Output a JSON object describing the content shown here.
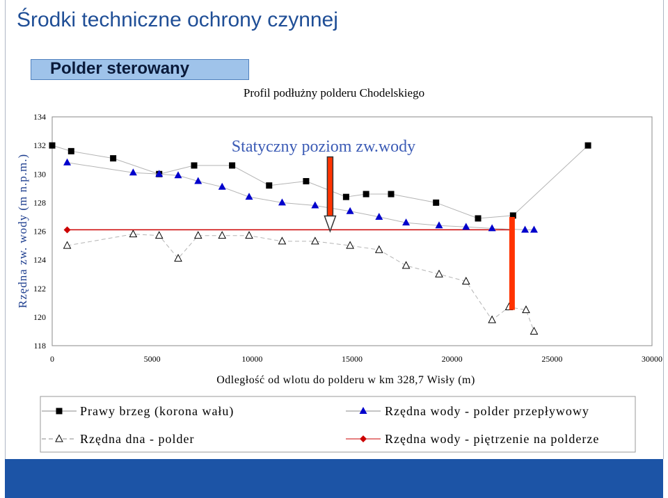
{
  "slide": {
    "title": "Środki techniczne ochrony czynnej",
    "subtitle_box": "Polder sterowany"
  },
  "chart_data": {
    "type": "line",
    "title": "Profil podłużny polderu Chodelskiego",
    "xlabel": "Odległość od wlotu do polderu w km 328,7 Wisły (m)",
    "ylabel": "Rzędna zw. wody (m n.p.m.)",
    "xlim": [
      0,
      30000
    ],
    "ylim": [
      118,
      134
    ],
    "xticks": [
      0,
      5000,
      10000,
      15000,
      20000,
      25000,
      30000
    ],
    "yticks": [
      118,
      120,
      122,
      124,
      126,
      128,
      130,
      132,
      134
    ],
    "legend_position": "bottom",
    "annotation": "Statyczny poziom zw.wody",
    "series": [
      {
        "name": "Prawy brzeg (korona wału)",
        "marker": "square",
        "color": "#000000",
        "line_color": "#b4b4b4",
        "dashed": false,
        "points": [
          [
            0,
            132.0
          ],
          [
            950,
            131.6
          ],
          [
            3050,
            131.1
          ],
          [
            5350,
            130.0
          ],
          [
            7100,
            130.6
          ],
          [
            9000,
            130.6
          ],
          [
            10850,
            129.2
          ],
          [
            12700,
            129.5
          ],
          [
            14700,
            128.4
          ],
          [
            15700,
            128.6
          ],
          [
            16950,
            128.6
          ],
          [
            19200,
            128.0
          ],
          [
            21300,
            126.9
          ],
          [
            23050,
            127.1
          ],
          [
            26800,
            132.0
          ]
        ]
      },
      {
        "name": "Rzędna wody - polder przepływowy",
        "marker": "triangle-filled",
        "color": "#0000cc",
        "line_color": "#b4b4b4",
        "dashed": false,
        "points": [
          [
            750,
            130.8
          ],
          [
            4050,
            130.1
          ],
          [
            5350,
            130.0
          ],
          [
            6300,
            129.9
          ],
          [
            7300,
            129.5
          ],
          [
            8500,
            129.1
          ],
          [
            9850,
            128.4
          ],
          [
            11500,
            128.0
          ],
          [
            13150,
            127.8
          ],
          [
            14900,
            127.4
          ],
          [
            16350,
            127.0
          ],
          [
            17700,
            126.6
          ],
          [
            19350,
            126.4
          ],
          [
            20700,
            126.3
          ],
          [
            22000,
            126.2
          ],
          [
            23650,
            126.1
          ],
          [
            24100,
            126.1
          ]
        ]
      },
      {
        "name": "Rzędna dna - polder",
        "marker": "triangle-open",
        "color": "#000000",
        "line_color": "#b4b4b4",
        "dashed": true,
        "points": [
          [
            750,
            125.0
          ],
          [
            4050,
            125.8
          ],
          [
            5350,
            125.7
          ],
          [
            6300,
            124.1
          ],
          [
            7300,
            125.7
          ],
          [
            8500,
            125.7
          ],
          [
            9850,
            125.7
          ],
          [
            11500,
            125.3
          ],
          [
            13150,
            125.3
          ],
          [
            14900,
            125.0
          ],
          [
            16350,
            124.7
          ],
          [
            17700,
            123.6
          ],
          [
            19350,
            123.0
          ],
          [
            20700,
            122.5
          ],
          [
            22000,
            119.8
          ],
          [
            22850,
            120.7
          ],
          [
            23700,
            120.5
          ],
          [
            24100,
            119.0
          ]
        ]
      },
      {
        "name": "Rzędna wody - piętrzenie na polderze",
        "marker": "diamond",
        "color": "#cc0000",
        "line_color": "#cc0000",
        "dashed": false,
        "points": [
          [
            750,
            126.1
          ],
          [
            23050,
            126.1
          ]
        ]
      }
    ],
    "arrows": [
      {
        "x": 13900,
        "y_from": 131.2,
        "y_to": 126.0,
        "color": "#5a5a5a"
      },
      {
        "x": 23000,
        "y_from": 127.0,
        "y_to": 120.5,
        "color": "#ff3300"
      }
    ]
  }
}
